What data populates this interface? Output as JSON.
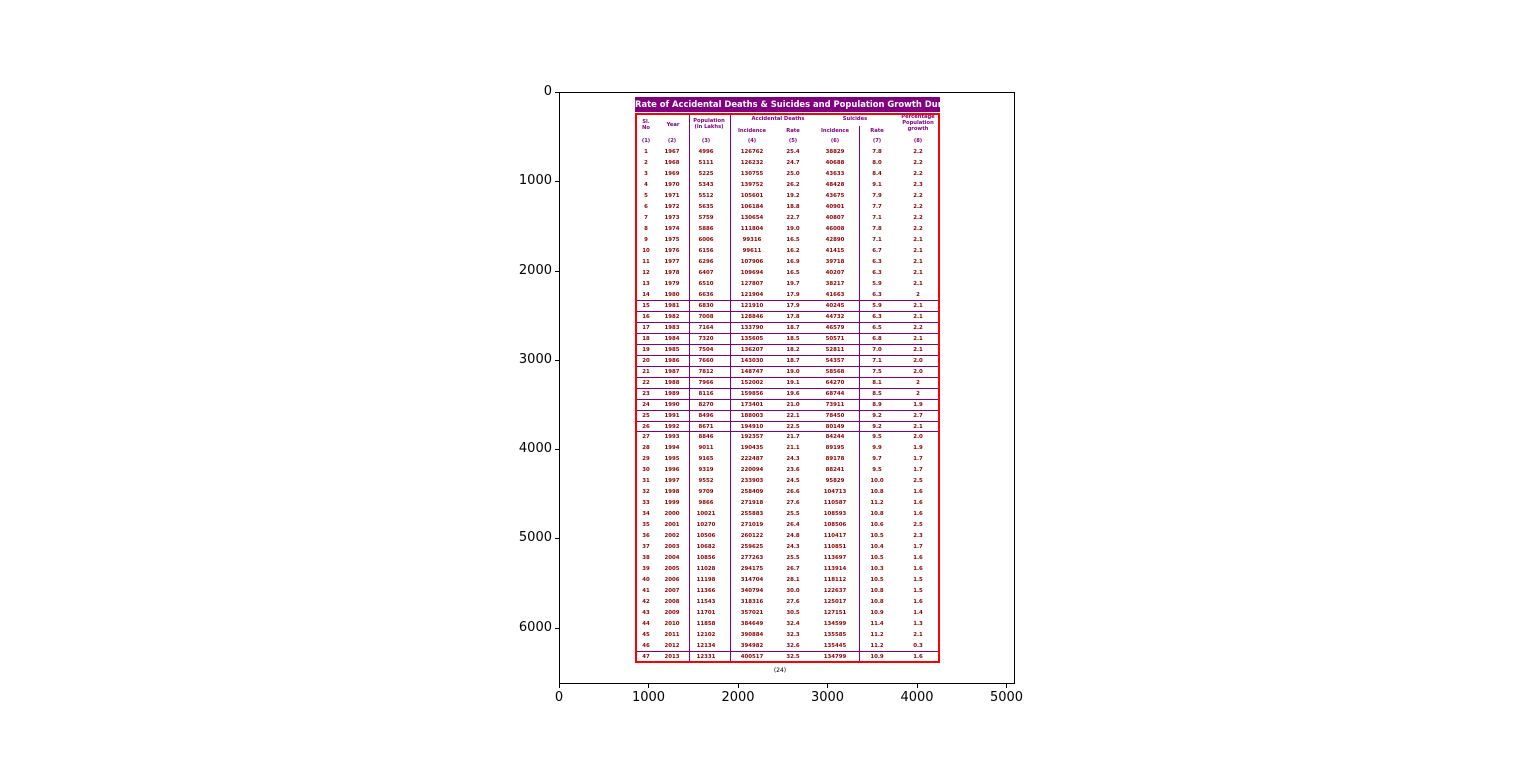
{
  "axes": {
    "xticks": [
      0,
      1000,
      2000,
      3000,
      4000,
      5000
    ],
    "yticks": [
      0,
      1000,
      2000,
      3000,
      4000,
      5000,
      6000
    ],
    "xlim": [
      0,
      5095
    ],
    "ylim": [
      6630,
      0
    ]
  },
  "document": {
    "title": "Rate of Accidental Deaths & Suicides and Population Growth During 1967 to 2013",
    "colors": {
      "header_bar": "#800080",
      "border": "#ff0000",
      "text": "#8b0000",
      "header_text": "#800080"
    },
    "headers": {
      "sl_no": "Sl. No",
      "year": "Year",
      "population": "Population (in Lakhs)",
      "accidental_deaths": "Accidental Deaths",
      "suicides": "Suicides",
      "incidence": "Incidence",
      "rate": "Rate",
      "growth": "Percentage Population growth"
    },
    "column_numbers": [
      "(1)",
      "(2)",
      "(3)",
      "(4)",
      "(5)",
      "(6)",
      "(7)",
      "(8)"
    ],
    "rows": [
      [
        "1",
        "1967",
        "4996",
        "126762",
        "25.4",
        "38829",
        "7.8",
        "2.2"
      ],
      [
        "2",
        "1968",
        "5111",
        "126232",
        "24.7",
        "40688",
        "8.0",
        "2.2"
      ],
      [
        "3",
        "1969",
        "5225",
        "130755",
        "25.0",
        "43633",
        "8.4",
        "2.2"
      ],
      [
        "4",
        "1970",
        "5343",
        "139752",
        "26.2",
        "48428",
        "9.1",
        "2.3"
      ],
      [
        "5",
        "1971",
        "5512",
        "105601",
        "19.2",
        "43675",
        "7.9",
        "2.2"
      ],
      [
        "6",
        "1972",
        "5635",
        "106184",
        "18.8",
        "40901",
        "7.7",
        "2.2"
      ],
      [
        "7",
        "1973",
        "5759",
        "130654",
        "22.7",
        "40807",
        "7.1",
        "2.2"
      ],
      [
        "8",
        "1974",
        "5886",
        "111804",
        "19.0",
        "46008",
        "7.8",
        "2.2"
      ],
      [
        "9",
        "1975",
        "6006",
        "99316",
        "16.5",
        "42890",
        "7.1",
        "2.1"
      ],
      [
        "10",
        "1976",
        "6156",
        "99611",
        "16.2",
        "41415",
        "6.7",
        "2.1"
      ],
      [
        "11",
        "1977",
        "6296",
        "107906",
        "16.9",
        "39718",
        "6.3",
        "2.1"
      ],
      [
        "12",
        "1978",
        "6407",
        "109694",
        "16.5",
        "40207",
        "6.3",
        "2.1"
      ],
      [
        "13",
        "1979",
        "6510",
        "127807",
        "19.7",
        "38217",
        "5.9",
        "2.1"
      ],
      [
        "14",
        "1980",
        "6636",
        "121904",
        "17.9",
        "41663",
        "6.3",
        "2"
      ],
      [
        "15",
        "1981",
        "6830",
        "121910",
        "17.9",
        "40245",
        "5.9",
        "2.1"
      ],
      [
        "16",
        "1982",
        "7008",
        "128846",
        "17.8",
        "44732",
        "6.3",
        "2.1"
      ],
      [
        "17",
        "1983",
        "7164",
        "133790",
        "18.7",
        "46579",
        "6.5",
        "2.2"
      ],
      [
        "18",
        "1984",
        "7320",
        "135605",
        "18.5",
        "50571",
        "6.8",
        "2.1"
      ],
      [
        "19",
        "1985",
        "7504",
        "136207",
        "18.2",
        "52811",
        "7.0",
        "2.1"
      ],
      [
        "20",
        "1986",
        "7660",
        "143030",
        "18.7",
        "54357",
        "7.1",
        "2.0"
      ],
      [
        "21",
        "1987",
        "7812",
        "148747",
        "19.0",
        "58568",
        "7.5",
        "2.0"
      ],
      [
        "22",
        "1988",
        "7966",
        "152002",
        "19.1",
        "64270",
        "8.1",
        "2"
      ],
      [
        "23",
        "1989",
        "8116",
        "159856",
        "19.6",
        "68744",
        "8.5",
        "2"
      ],
      [
        "24",
        "1990",
        "8270",
        "173401",
        "21.0",
        "73911",
        "8.9",
        "1.9"
      ],
      [
        "25",
        "1991",
        "8496",
        "188003",
        "22.1",
        "78450",
        "9.2",
        "2.7"
      ],
      [
        "26",
        "1992",
        "8671",
        "194910",
        "22.5",
        "80149",
        "9.2",
        "2.1"
      ],
      [
        "27",
        "1993",
        "8846",
        "192357",
        "21.7",
        "84244",
        "9.5",
        "2.0"
      ],
      [
        "28",
        "1994",
        "9011",
        "190435",
        "21.1",
        "89195",
        "9.9",
        "1.9"
      ],
      [
        "29",
        "1995",
        "9165",
        "222487",
        "24.3",
        "89178",
        "9.7",
        "1.7"
      ],
      [
        "30",
        "1996",
        "9319",
        "220094",
        "23.6",
        "88241",
        "9.5",
        "1.7"
      ],
      [
        "31",
        "1997",
        "9552",
        "233903",
        "24.5",
        "95829",
        "10.0",
        "2.5"
      ],
      [
        "32",
        "1998",
        "9709",
        "258409",
        "26.6",
        "104713",
        "10.8",
        "1.6"
      ],
      [
        "33",
        "1999",
        "9866",
        "271918",
        "27.6",
        "110587",
        "11.2",
        "1.6"
      ],
      [
        "34",
        "2000",
        "10021",
        "255883",
        "25.5",
        "108593",
        "10.8",
        "1.6"
      ],
      [
        "35",
        "2001",
        "10270",
        "271019",
        "26.4",
        "108506",
        "10.6",
        "2.5"
      ],
      [
        "36",
        "2002",
        "10506",
        "260122",
        "24.8",
        "110417",
        "10.5",
        "2.3"
      ],
      [
        "37",
        "2003",
        "10682",
        "259625",
        "24.3",
        "110851",
        "10.4",
        "1.7"
      ],
      [
        "38",
        "2004",
        "10856",
        "277263",
        "25.5",
        "113697",
        "10.5",
        "1.6"
      ],
      [
        "39",
        "2005",
        "11028",
        "294175",
        "26.7",
        "113914",
        "10.3",
        "1.6"
      ],
      [
        "40",
        "2006",
        "11198",
        "314704",
        "28.1",
        "118112",
        "10.5",
        "1.5"
      ],
      [
        "41",
        "2007",
        "11366",
        "340794",
        "30.0",
        "122637",
        "10.8",
        "1.5"
      ],
      [
        "42",
        "2008",
        "11543",
        "318316",
        "27.6",
        "125017",
        "10.8",
        "1.6"
      ],
      [
        "43",
        "2009",
        "11701",
        "357021",
        "30.5",
        "127151",
        "10.9",
        "1.4"
      ],
      [
        "44",
        "2010",
        "11858",
        "384649",
        "32.4",
        "134599",
        "11.4",
        "1.3"
      ],
      [
        "45",
        "2011",
        "12102",
        "390884",
        "32.3",
        "135585",
        "11.2",
        "2.1"
      ],
      [
        "46",
        "2012",
        "12134",
        "394982",
        "32.6",
        "135445",
        "11.2",
        "0.3"
      ],
      [
        "47",
        "2013",
        "12331",
        "400517",
        "32.5",
        "134799",
        "10.9",
        "1.6"
      ]
    ],
    "footer": "(24)"
  }
}
